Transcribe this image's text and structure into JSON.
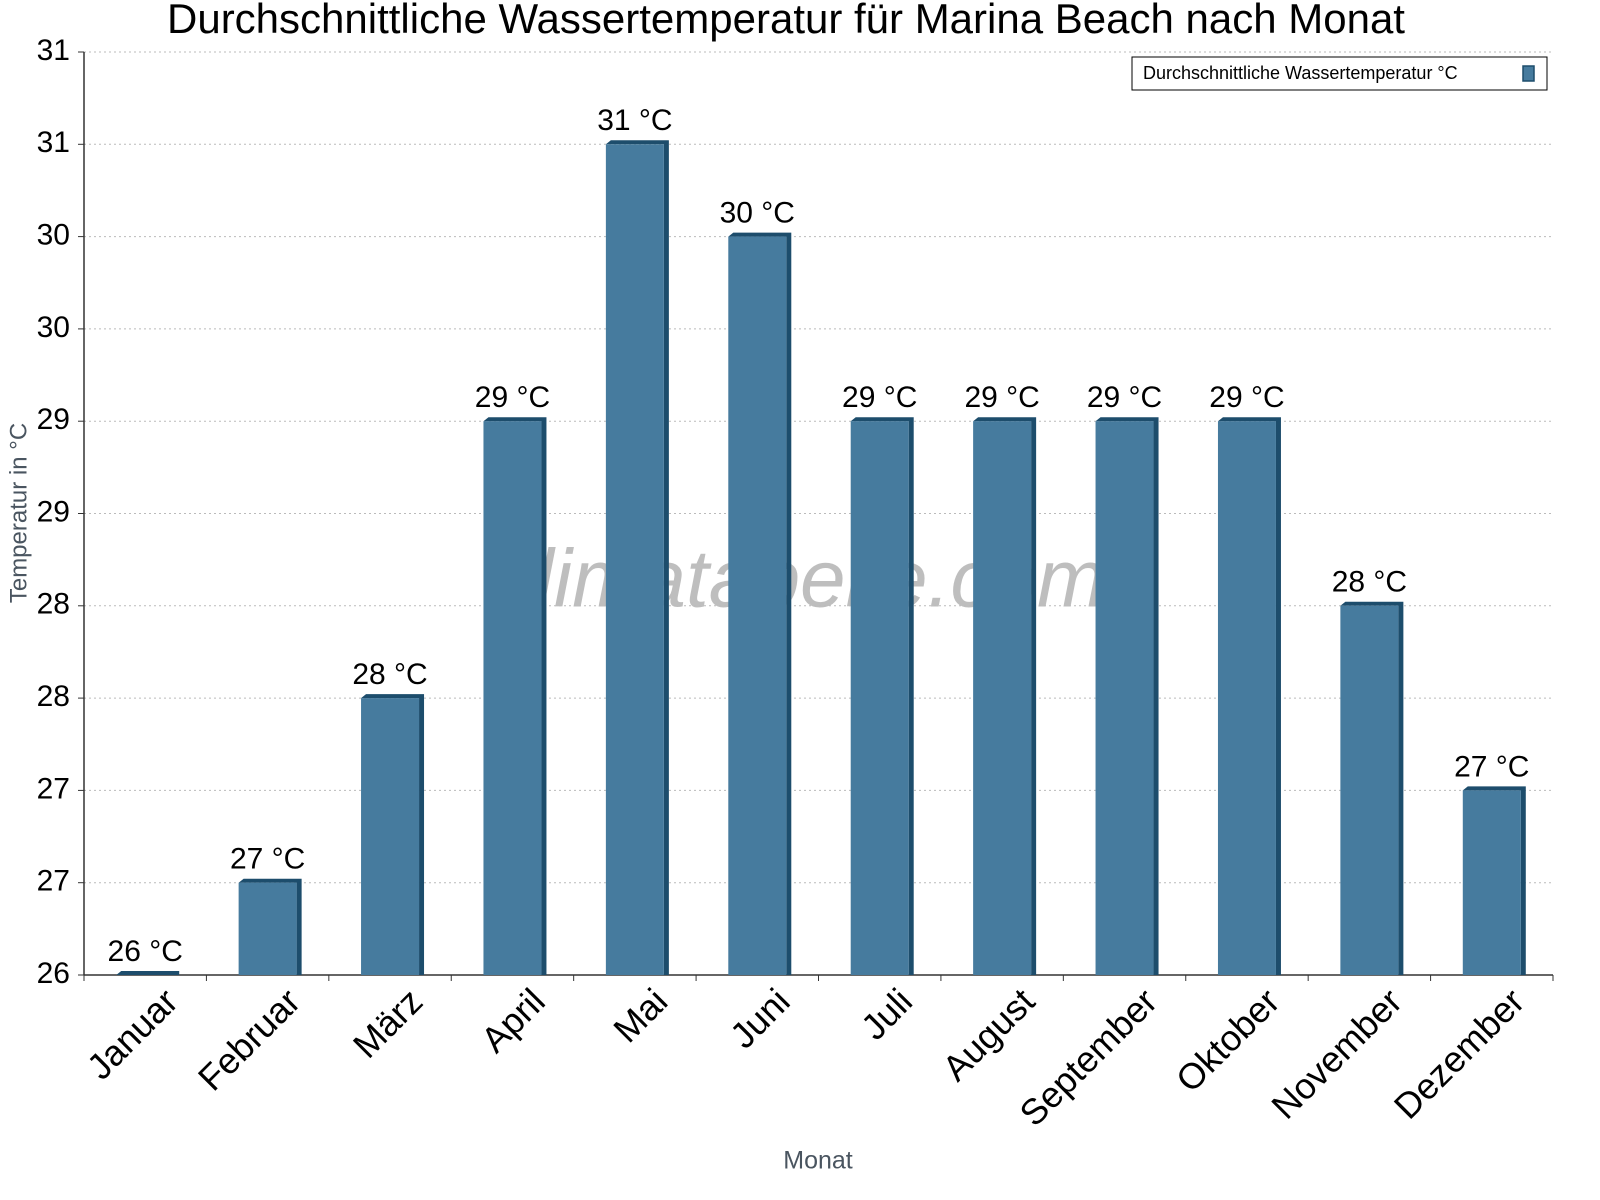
{
  "chart_data": {
    "type": "bar",
    "title": "Durchschnittliche Wassertemperatur für Marina Beach nach Monat",
    "xlabel": "Monat",
    "ylabel": "Temperatur in °C",
    "watermark": "klimatabelle.com",
    "categories": [
      "Januar",
      "Februar",
      "März",
      "April",
      "Mai",
      "Juni",
      "Juli",
      "August",
      "September",
      "Oktober",
      "November",
      "Dezember"
    ],
    "series": [
      {
        "name": "Durchschnittliche Wassertemperatur °C",
        "color": "#467b9e",
        "side_color": "#1d4d6c",
        "values": [
          26,
          26.5,
          27.5,
          29,
          30.5,
          30,
          29,
          29,
          29,
          29,
          28,
          27
        ],
        "value_labels": [
          "26 °C",
          "27 °C",
          "28 °C",
          "29 °C",
          "31 °C",
          "30 °C",
          "29 °C",
          "29 °C",
          "29 °C",
          "29 °C",
          "28 °C",
          "27 °C"
        ]
      }
    ],
    "ylim": [
      26,
      31
    ],
    "yticks": [
      26,
      {
        "value": 26.5,
        "label": "27"
      },
      27,
      {
        "value": 27.5,
        "label": "28"
      },
      28,
      {
        "value": 28.5,
        "label": "29"
      },
      29,
      {
        "value": 29.5,
        "label": "30"
      },
      30,
      {
        "value": 30.5,
        "label": "31"
      },
      31
    ],
    "grid": true,
    "legend": "upper right"
  }
}
